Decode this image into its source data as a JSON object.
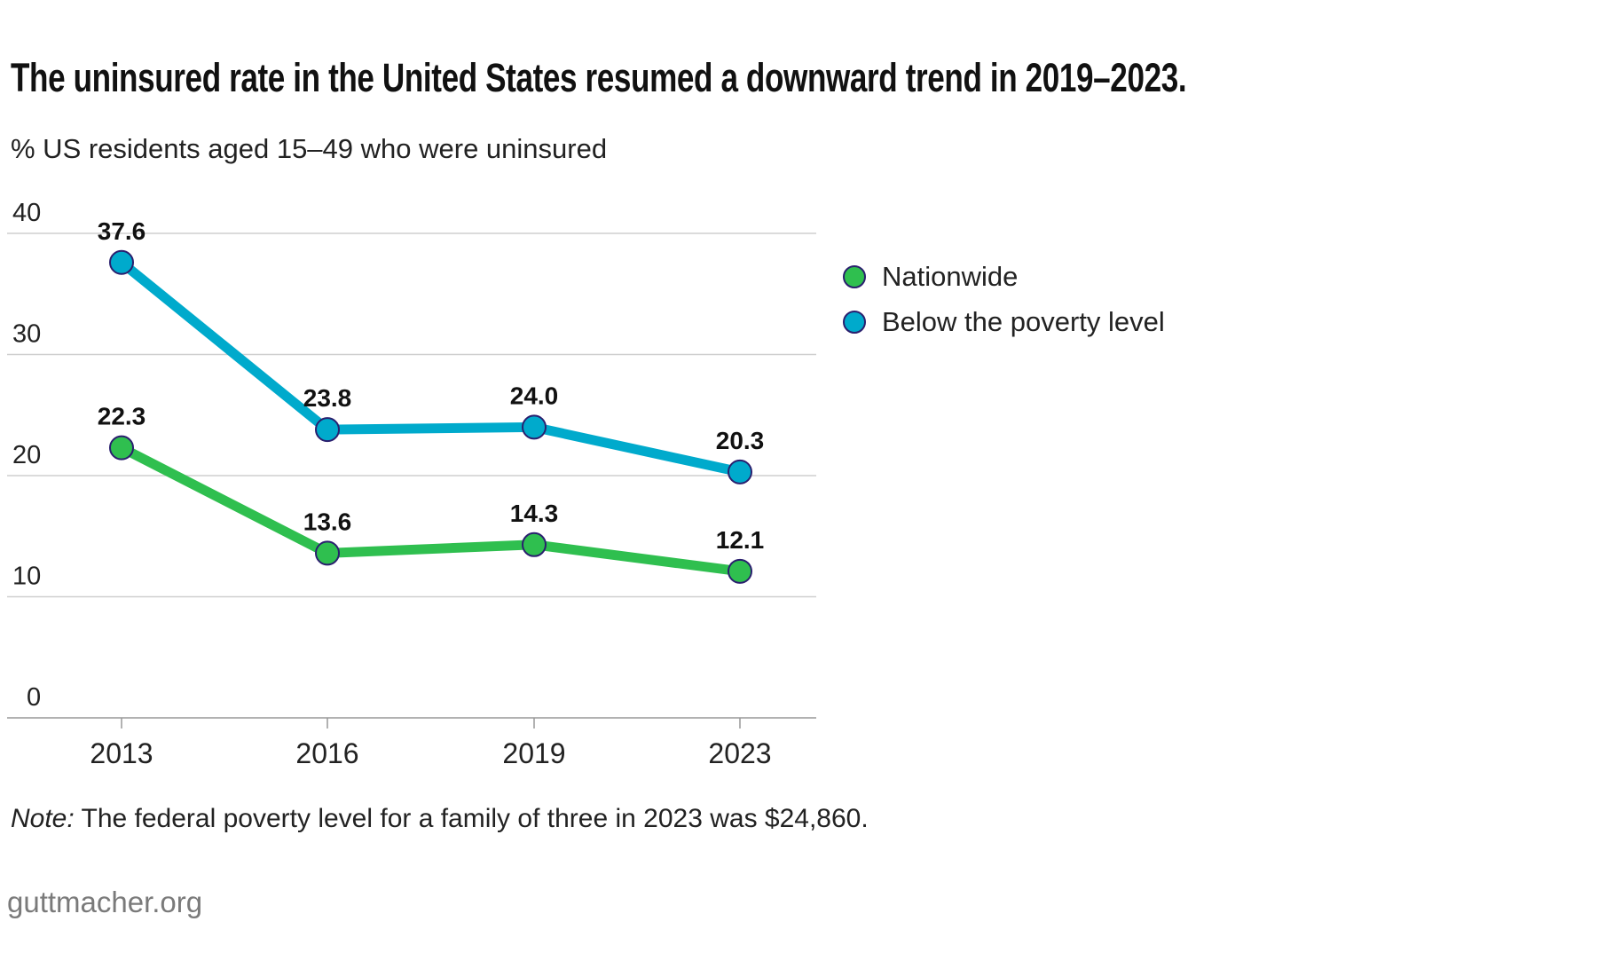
{
  "chart_data": {
    "type": "line",
    "title": "The uninsured rate in the United States resumed a downward trend in 2019–2023.",
    "subtitle": "% US residents aged 15–49 who were uninsured",
    "categories": [
      "2013",
      "2016",
      "2019",
      "2023"
    ],
    "ylim": [
      0,
      40
    ],
    "yticks": [
      "0",
      "10",
      "20",
      "30",
      "40"
    ],
    "grid": true,
    "legend_placement": "right",
    "series": [
      {
        "name": "Nationwide",
        "values": [
          22.3,
          13.6,
          14.3,
          12.1
        ],
        "labels": [
          "22.3",
          "13.6",
          "14.3",
          "12.1"
        ],
        "color": "#2fbf4f"
      },
      {
        "name": "Below the poverty level",
        "values": [
          37.6,
          23.8,
          24.0,
          20.3
        ],
        "labels": [
          "37.6",
          "23.8",
          "24.0",
          "20.3"
        ],
        "color": "#00aacc"
      }
    ],
    "marker_stroke": "#2a1f6e"
  },
  "note": {
    "label": "Note:",
    "text": " The federal poverty level for a family of three in 2023 was $24,860."
  },
  "source": "guttmacher.org"
}
